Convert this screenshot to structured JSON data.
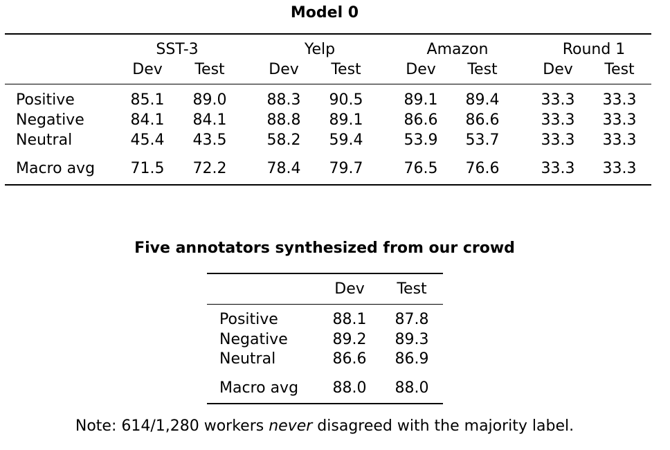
{
  "table1": {
    "title": "Model 0",
    "groups": [
      "SST-3",
      "Yelp",
      "Amazon",
      "Round 1"
    ],
    "subheaders": [
      "Dev",
      "Test"
    ],
    "rows": [
      {
        "label": "Positive",
        "values": [
          "85.1",
          "89.0",
          "88.3",
          "90.5",
          "89.1",
          "89.4",
          "33.3",
          "33.3"
        ]
      },
      {
        "label": "Negative",
        "values": [
          "84.1",
          "84.1",
          "88.8",
          "89.1",
          "86.6",
          "86.6",
          "33.3",
          "33.3"
        ]
      },
      {
        "label": "Neutral",
        "values": [
          "45.4",
          "43.5",
          "58.2",
          "59.4",
          "53.9",
          "53.7",
          "33.3",
          "33.3"
        ]
      }
    ],
    "summary": {
      "label": "Macro avg",
      "values": [
        "71.5",
        "72.2",
        "78.4",
        "79.7",
        "76.5",
        "76.6",
        "33.3",
        "33.3"
      ]
    }
  },
  "table2": {
    "title": "Five annotators synthesized from our crowd",
    "headers": [
      "Dev",
      "Test"
    ],
    "rows": [
      {
        "label": "Positive",
        "values": [
          "88.1",
          "87.8"
        ]
      },
      {
        "label": "Negative",
        "values": [
          "89.2",
          "89.3"
        ]
      },
      {
        "label": "Neutral",
        "values": [
          "86.6",
          "86.9"
        ]
      }
    ],
    "summary": {
      "label": "Macro avg",
      "values": [
        "88.0",
        "88.0"
      ]
    }
  },
  "note": {
    "prefix": "Note: 614/1,280 workers ",
    "emphasis": "never",
    "suffix": " disagreed with the majority label."
  }
}
